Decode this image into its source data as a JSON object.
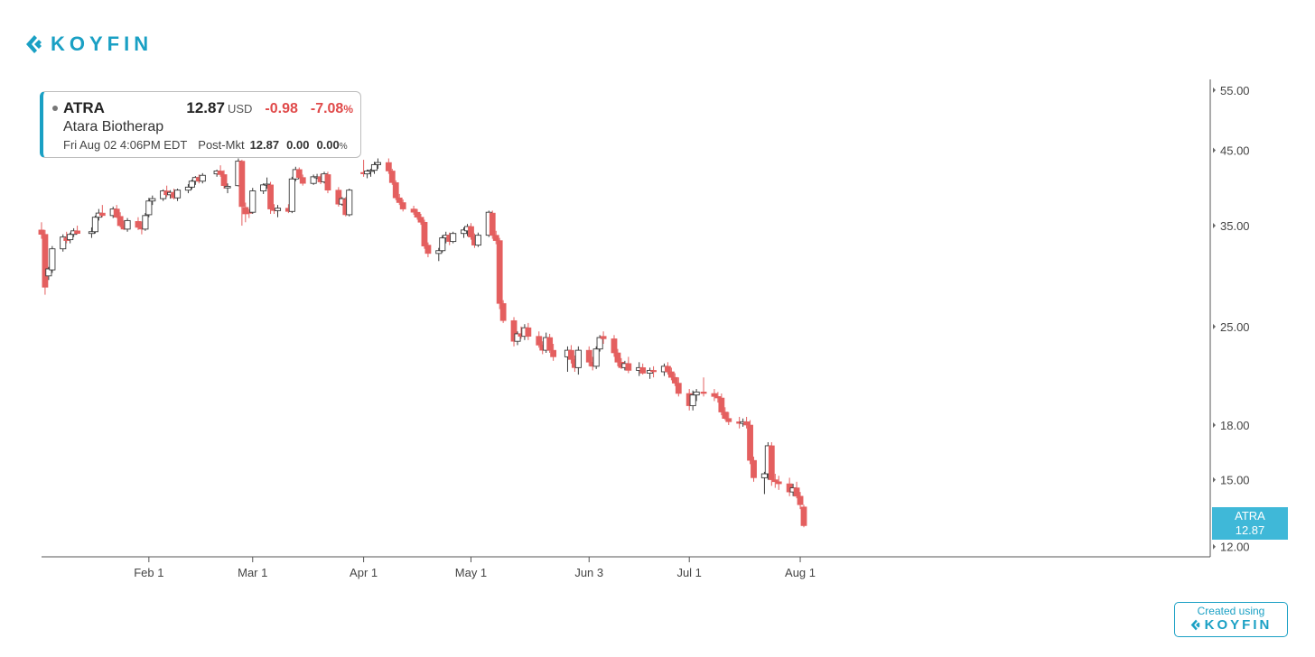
{
  "brand": {
    "name": "KOYFIN"
  },
  "quote": {
    "ticker": "ATRA",
    "price": "12.87",
    "currency": "USD",
    "change": "-0.98",
    "change_pct": "-7.08",
    "pct_sign": "%",
    "name": "Atara Biotherap",
    "datetime": "Fri Aug 02 4:06PM EDT",
    "session": "Post-Mkt",
    "pm_price": "12.87",
    "pm_change": "0.00",
    "pm_pct": "0.00",
    "pm_pct_sign": "%"
  },
  "price_tag": {
    "ticker": "ATRA",
    "price": "12.87"
  },
  "credit": {
    "label": "Created using",
    "brand": "KOYFIN"
  },
  "colors": {
    "accent": "#1aa0c4",
    "down": "#e45f5f",
    "up_fill": "#ffffff",
    "up_border": "#444444",
    "tag": "#3fb8d8"
  },
  "chart_data": {
    "type": "candlestick",
    "title": "",
    "xlabel": "",
    "ylabel": "",
    "y_scale": "log",
    "ylim": [
      11.6,
      57
    ],
    "y_ticks": [
      55,
      45,
      35,
      25,
      18,
      15,
      12
    ],
    "y_tick_labels": [
      "55.00",
      "45.00",
      "35.00",
      "25.00",
      "18.00",
      "15.00",
      "12.00"
    ],
    "x_ticks": [
      {
        "date": "2024-02-01",
        "label": "Feb 1"
      },
      {
        "date": "2024-03-01",
        "label": "Mar 1"
      },
      {
        "date": "2024-04-01",
        "label": "Apr 1"
      },
      {
        "date": "2024-05-01",
        "label": "May 1"
      },
      {
        "date": "2024-06-03",
        "label": "Jun 3"
      },
      {
        "date": "2024-07-01",
        "label": "Jul 1"
      },
      {
        "date": "2024-08-01",
        "label": "Aug 1"
      }
    ],
    "candles": [
      [
        "2024-01-02",
        34.5,
        35.4,
        33.5,
        34.0
      ],
      [
        "2024-01-03",
        34.0,
        34.5,
        27.8,
        28.5
      ],
      [
        "2024-01-04",
        29.6,
        30.5,
        29.2,
        30.3
      ],
      [
        "2024-01-05",
        30.2,
        32.7,
        29.9,
        32.4
      ],
      [
        "2024-01-08",
        32.4,
        34.0,
        32.1,
        33.7
      ],
      [
        "2024-01-09",
        33.6,
        34.3,
        33.0,
        33.3
      ],
      [
        "2024-01-10",
        33.4,
        34.2,
        33.0,
        34.0
      ],
      [
        "2024-01-11",
        34.0,
        34.7,
        33.7,
        34.4
      ],
      [
        "2024-01-12",
        34.4,
        35.0,
        34.0,
        34.1
      ],
      [
        "2024-01-16",
        34.1,
        34.8,
        33.6,
        34.3
      ],
      [
        "2024-01-17",
        34.3,
        36.2,
        34.1,
        36.0
      ],
      [
        "2024-01-18",
        36.0,
        37.0,
        35.6,
        36.5
      ],
      [
        "2024-01-19",
        36.5,
        37.5,
        36.0,
        36.2
      ],
      [
        "2024-01-22",
        36.2,
        37.3,
        35.9,
        37.0
      ],
      [
        "2024-01-23",
        37.0,
        37.5,
        35.9,
        36.0
      ],
      [
        "2024-01-24",
        36.1,
        36.6,
        34.8,
        35.0
      ],
      [
        "2024-01-25",
        35.0,
        35.6,
        34.5,
        34.6
      ],
      [
        "2024-01-26",
        34.6,
        35.9,
        34.3,
        35.6
      ],
      [
        "2024-01-29",
        35.5,
        36.0,
        34.5,
        34.8
      ],
      [
        "2024-01-30",
        34.8,
        35.5,
        34.0,
        34.6
      ],
      [
        "2024-01-31",
        34.6,
        36.5,
        34.4,
        36.2
      ],
      [
        "2024-02-01",
        36.3,
        38.4,
        36.0,
        38.0
      ],
      [
        "2024-02-02",
        38.0,
        38.7,
        37.5,
        38.3
      ],
      [
        "2024-02-05",
        38.3,
        39.5,
        38.0,
        39.3
      ],
      [
        "2024-02-06",
        39.3,
        40.0,
        38.5,
        38.8
      ],
      [
        "2024-02-07",
        38.8,
        39.4,
        38.3,
        39.1
      ],
      [
        "2024-02-08",
        39.1,
        39.6,
        38.2,
        38.4
      ],
      [
        "2024-02-09",
        38.4,
        39.6,
        38.0,
        39.4
      ],
      [
        "2024-02-12",
        39.4,
        40.2,
        39.0,
        39.8
      ],
      [
        "2024-02-13",
        39.8,
        40.8,
        39.5,
        40.6
      ],
      [
        "2024-02-14",
        40.6,
        41.3,
        40.1,
        41.1
      ],
      [
        "2024-02-15",
        41.1,
        41.5,
        40.3,
        40.6
      ],
      [
        "2024-02-16",
        40.6,
        41.7,
        40.3,
        41.4
      ],
      [
        "2024-02-20",
        41.6,
        42.2,
        41.2,
        42.0
      ],
      [
        "2024-02-21",
        42.0,
        42.8,
        41.2,
        41.5
      ],
      [
        "2024-02-22",
        41.5,
        42.1,
        39.6,
        40.0
      ],
      [
        "2024-02-23",
        39.7,
        40.3,
        39.0,
        39.9
      ],
      [
        "2024-02-26",
        40.0,
        43.8,
        39.9,
        43.4
      ],
      [
        "2024-02-27",
        43.4,
        43.6,
        35.0,
        37.3
      ],
      [
        "2024-02-28",
        37.2,
        37.8,
        35.4,
        36.4
      ],
      [
        "2024-02-29",
        36.6,
        37.0,
        35.9,
        36.5
      ],
      [
        "2024-03-01",
        36.6,
        39.7,
        36.4,
        39.3
      ],
      [
        "2024-03-04",
        39.3,
        40.3,
        38.9,
        40.1
      ],
      [
        "2024-03-05",
        40.1,
        41.1,
        39.6,
        40.2
      ],
      [
        "2024-03-06",
        40.1,
        40.5,
        36.4,
        37.0
      ],
      [
        "2024-03-07",
        37.0,
        37.6,
        36.4,
        36.8
      ],
      [
        "2024-03-08",
        36.8,
        37.5,
        36.0,
        37.1
      ],
      [
        "2024-03-11",
        37.1,
        37.6,
        36.5,
        36.7
      ],
      [
        "2024-03-12",
        36.7,
        41.2,
        36.5,
        40.9
      ],
      [
        "2024-03-13",
        40.9,
        42.6,
        40.6,
        42.2
      ],
      [
        "2024-03-14",
        42.2,
        42.5,
        40.9,
        41.1
      ],
      [
        "2024-03-15",
        41.1,
        41.5,
        40.0,
        40.3
      ],
      [
        "2024-03-18",
        40.3,
        41.5,
        40.1,
        41.2
      ],
      [
        "2024-03-19",
        41.1,
        41.6,
        40.9,
        41.2
      ],
      [
        "2024-03-20",
        41.2,
        41.6,
        40.2,
        40.5
      ],
      [
        "2024-03-21",
        40.5,
        41.9,
        40.3,
        41.6
      ],
      [
        "2024-03-22",
        41.5,
        41.9,
        39.0,
        39.4
      ],
      [
        "2024-03-25",
        39.4,
        39.8,
        37.3,
        37.6
      ],
      [
        "2024-03-26",
        37.6,
        38.5,
        37.4,
        38.3
      ],
      [
        "2024-03-27",
        38.2,
        38.5,
        36.1,
        36.3
      ],
      [
        "2024-03-28",
        36.3,
        39.6,
        36.1,
        39.4
      ],
      [
        "2024-04-01",
        41.8,
        43.6,
        41.2,
        41.6
      ],
      [
        "2024-04-02",
        41.6,
        42.2,
        41.0,
        42.0
      ],
      [
        "2024-04-03",
        42.0,
        42.3,
        41.2,
        42.1
      ],
      [
        "2024-04-04",
        42.1,
        43.3,
        41.6,
        42.9
      ],
      [
        "2024-04-05",
        42.9,
        43.8,
        42.3,
        43.2
      ],
      [
        "2024-04-08",
        43.2,
        43.8,
        41.6,
        42.0
      ],
      [
        "2024-04-09",
        42.0,
        42.3,
        40.1,
        40.4
      ],
      [
        "2024-04-10",
        40.4,
        40.7,
        38.1,
        38.4
      ],
      [
        "2024-04-11",
        38.4,
        38.9,
        37.5,
        37.8
      ],
      [
        "2024-04-12",
        37.8,
        38.2,
        36.7,
        37.0
      ],
      [
        "2024-04-15",
        37.0,
        37.4,
        36.3,
        36.6
      ],
      [
        "2024-04-16",
        36.6,
        37.0,
        35.7,
        36.0
      ],
      [
        "2024-04-17",
        36.0,
        36.4,
        35.1,
        35.4
      ],
      [
        "2024-04-18",
        35.4,
        35.7,
        32.4,
        32.7
      ],
      [
        "2024-04-19",
        32.8,
        33.1,
        31.5,
        31.9
      ],
      [
        "2024-04-22",
        31.9,
        32.5,
        31.1,
        32.2
      ],
      [
        "2024-04-23",
        32.2,
        33.9,
        32.0,
        33.6
      ],
      [
        "2024-04-24",
        33.6,
        34.3,
        33.0,
        33.9
      ],
      [
        "2024-04-25",
        33.9,
        34.2,
        32.8,
        33.2
      ],
      [
        "2024-04-26",
        33.2,
        34.3,
        33.0,
        34.1
      ],
      [
        "2024-04-29",
        34.1,
        34.8,
        33.6,
        34.5
      ],
      [
        "2024-04-30",
        34.4,
        35.2,
        33.8,
        34.9
      ],
      [
        "2024-05-01",
        34.9,
        35.3,
        33.4,
        33.7
      ],
      [
        "2024-05-02",
        33.7,
        34.1,
        32.5,
        32.8
      ],
      [
        "2024-05-03",
        32.8,
        34.2,
        32.6,
        33.9
      ],
      [
        "2024-05-06",
        33.9,
        36.8,
        33.7,
        36.6
      ],
      [
        "2024-05-07",
        36.5,
        36.8,
        33.5,
        33.9
      ],
      [
        "2024-05-08",
        33.9,
        34.4,
        32.9,
        33.3
      ],
      [
        "2024-05-09",
        33.3,
        33.6,
        26.5,
        27.0
      ],
      [
        "2024-05-10",
        27.0,
        27.3,
        25.3,
        25.5
      ],
      [
        "2024-05-13",
        25.5,
        25.8,
        23.4,
        23.8
      ],
      [
        "2024-05-14",
        23.8,
        24.6,
        23.5,
        24.4
      ],
      [
        "2024-05-15",
        24.4,
        25.0,
        24.0,
        24.2
      ],
      [
        "2024-05-16",
        24.2,
        25.2,
        23.9,
        24.9
      ],
      [
        "2024-05-17",
        24.9,
        25.3,
        23.9,
        24.2
      ],
      [
        "2024-05-20",
        24.2,
        24.6,
        23.3,
        23.5
      ],
      [
        "2024-05-21",
        23.5,
        23.8,
        22.8,
        23.1
      ],
      [
        "2024-05-22",
        23.1,
        24.5,
        22.9,
        24.1
      ],
      [
        "2024-05-23",
        24.1,
        24.4,
        22.9,
        23.1
      ],
      [
        "2024-05-24",
        23.1,
        23.6,
        22.3,
        22.6
      ],
      [
        "2024-05-28",
        22.6,
        23.4,
        21.5,
        23.1
      ],
      [
        "2024-05-29",
        23.1,
        23.5,
        22.1,
        22.4
      ],
      [
        "2024-05-30",
        22.4,
        22.7,
        21.5,
        21.8
      ],
      [
        "2024-05-31",
        21.8,
        23.4,
        21.3,
        23.1
      ],
      [
        "2024-06-03",
        23.1,
        23.4,
        21.9,
        22.2
      ],
      [
        "2024-06-04",
        22.2,
        22.6,
        21.6,
        21.9
      ],
      [
        "2024-06-05",
        21.9,
        23.4,
        21.7,
        23.2
      ],
      [
        "2024-06-06",
        23.2,
        24.3,
        23.0,
        24.1
      ],
      [
        "2024-06-07",
        24.2,
        24.6,
        23.6,
        24.0
      ],
      [
        "2024-06-10",
        24.0,
        24.3,
        22.6,
        22.9
      ],
      [
        "2024-06-11",
        22.9,
        23.2,
        21.9,
        22.2
      ],
      [
        "2024-06-12",
        22.2,
        22.5,
        21.7,
        21.8
      ],
      [
        "2024-06-13",
        21.8,
        22.3,
        21.6,
        22.1
      ],
      [
        "2024-06-14",
        22.1,
        22.6,
        21.4,
        21.6
      ],
      [
        "2024-06-17",
        21.6,
        22.2,
        21.2,
        21.8
      ],
      [
        "2024-06-18",
        21.8,
        22.1,
        21.3,
        21.4
      ],
      [
        "2024-06-20",
        21.4,
        21.8,
        21.0,
        21.6
      ],
      [
        "2024-06-21",
        21.6,
        21.9,
        21.1,
        21.5
      ],
      [
        "2024-06-24",
        21.5,
        22.1,
        21.2,
        21.9
      ],
      [
        "2024-06-25",
        21.9,
        22.2,
        21.3,
        21.5
      ],
      [
        "2024-06-26",
        21.5,
        21.8,
        20.9,
        21.1
      ],
      [
        "2024-06-27",
        21.1,
        21.4,
        20.5,
        20.7
      ],
      [
        "2024-06-28",
        20.7,
        21.1,
        19.8,
        20.0
      ],
      [
        "2024-07-01",
        20.0,
        20.3,
        18.9,
        19.2
      ],
      [
        "2024-07-02",
        19.2,
        20.2,
        18.9,
        19.9
      ],
      [
        "2024-07-03",
        19.9,
        20.3,
        19.5,
        20.1
      ],
      [
        "2024-07-05",
        20.1,
        21.1,
        19.8,
        20.0
      ],
      [
        "2024-07-08",
        20.0,
        20.3,
        19.5,
        19.8
      ],
      [
        "2024-07-09",
        19.8,
        20.1,
        19.4,
        19.7
      ],
      [
        "2024-07-10",
        19.7,
        20.0,
        18.6,
        18.8
      ],
      [
        "2024-07-11",
        18.8,
        19.1,
        18.3,
        18.4
      ],
      [
        "2024-07-12",
        18.4,
        18.8,
        18.0,
        18.2
      ],
      [
        "2024-07-15",
        18.2,
        18.5,
        17.8,
        18.1
      ],
      [
        "2024-07-16",
        18.1,
        18.4,
        17.9,
        18.2
      ],
      [
        "2024-07-17",
        18.2,
        18.5,
        17.8,
        18.0
      ],
      [
        "2024-07-18",
        18.0,
        18.3,
        15.8,
        16.0
      ],
      [
        "2024-07-19",
        16.0,
        16.2,
        14.9,
        15.1
      ],
      [
        "2024-07-22",
        15.1,
        15.4,
        14.3,
        15.3
      ],
      [
        "2024-07-23",
        15.3,
        17.0,
        15.0,
        16.8
      ],
      [
        "2024-07-24",
        16.8,
        17.0,
        14.7,
        15.0
      ],
      [
        "2024-07-25",
        15.0,
        15.3,
        14.6,
        14.9
      ],
      [
        "2024-07-26",
        14.9,
        15.2,
        14.5,
        14.8
      ],
      [
        "2024-07-29",
        14.8,
        15.1,
        14.2,
        14.4
      ],
      [
        "2024-07-30",
        14.4,
        14.8,
        14.2,
        14.6
      ],
      [
        "2024-07-31",
        14.6,
        14.9,
        14.1,
        14.2
      ],
      [
        "2024-08-01",
        14.2,
        14.4,
        13.6,
        13.8
      ],
      [
        "2024-08-02",
        13.7,
        13.8,
        12.8,
        12.87
      ]
    ]
  }
}
